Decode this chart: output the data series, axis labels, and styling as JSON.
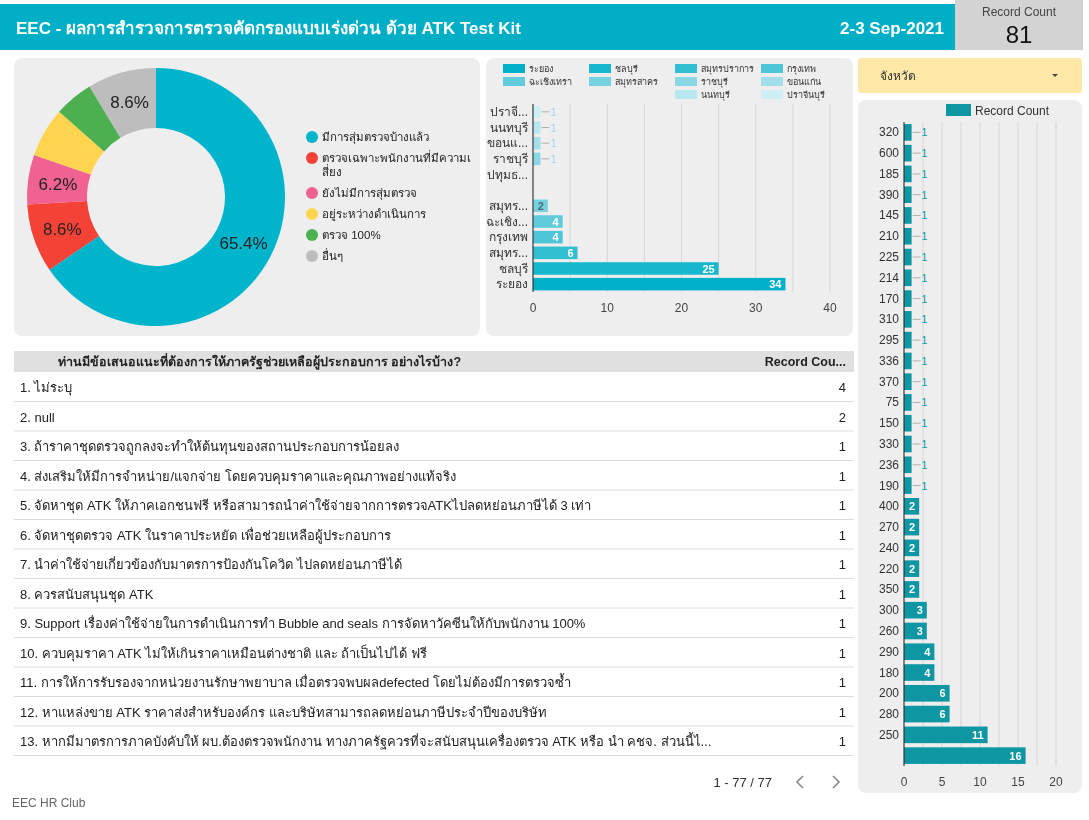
{
  "chart_data": [
    {
      "type": "other",
      "title": "EEC - ผลการสำรวจการตรวจคัดกรองแบบเร่งด่วน ด้วย ATK Test Kit",
      "subtitle": "2-3 Sep-2021"
    },
    {
      "type": "other",
      "title": "Record Count",
      "values": [
        81
      ],
      "data_labels": true
    },
    {
      "type": "donut",
      "categories": [
        "มีการสุ่มตรวจบ้างแล้ว",
        "ตรวจเฉพาะพนักงานที่มีความเสี่ยง",
        "ยังไม่มีการสุ่มตรวจ",
        "อยู่ระหว่างดำเนินการ",
        "ตรวจ 100%",
        "อื่นๆ"
      ],
      "values": [
        65.4,
        8.6,
        6.2,
        6.2,
        4.9,
        8.6
      ],
      "colors": [
        "#00b4cc",
        "#f44336",
        "#f06292",
        "#ffd54f",
        "#4caf50",
        "#bdbdbd"
      ],
      "value_labels": [
        "65.4%",
        "8.6%",
        "6.2%",
        null,
        null,
        "8.6%"
      ],
      "legend": "right"
    },
    {
      "type": "bar",
      "orientation": "horizontal",
      "stacked": true,
      "categories": [
        "ปราจี...",
        "นนทบุรี",
        "ขอนแ...",
        "ราชบุรี",
        "ปทุมธ...",
        null,
        "สมุทร...",
        "ฉะเชิง...",
        "กรุงเทพ",
        "สมุทร...",
        "ชลบุรี",
        "ระยอง"
      ],
      "series": [
        {
          "name": "ระยอง",
          "color": "#00b0c8",
          "values": [
            null,
            null,
            null,
            null,
            null,
            null,
            null,
            null,
            null,
            null,
            null,
            34
          ]
        },
        {
          "name": "ชลบุรี",
          "color": "#17b8cd",
          "values": [
            null,
            null,
            null,
            null,
            null,
            null,
            null,
            null,
            null,
            null,
            25,
            null
          ]
        },
        {
          "name": "สมุทรปราการ",
          "color": "#33bfd2",
          "values": [
            null,
            null,
            null,
            null,
            null,
            null,
            null,
            null,
            null,
            6,
            null,
            null
          ]
        },
        {
          "name": "กรุงเทพ",
          "color": "#4cc6d8",
          "values": [
            null,
            null,
            null,
            null,
            null,
            null,
            null,
            null,
            4,
            null,
            null,
            null
          ]
        },
        {
          "name": "ฉะเชิงเทรา",
          "color": "#60cbdb",
          "values": [
            null,
            null,
            null,
            null,
            null,
            null,
            null,
            4,
            null,
            null,
            null,
            null
          ]
        },
        {
          "name": "สมุทรสาคร",
          "color": "#76d2e0",
          "values": [
            null,
            null,
            null,
            null,
            null,
            null,
            2,
            null,
            null,
            null,
            null,
            null
          ]
        },
        {
          "name": "ราชบุรี",
          "color": "#8bd8e5",
          "values": [
            null,
            null,
            null,
            1,
            null,
            null,
            null,
            null,
            null,
            null,
            null,
            null
          ]
        },
        {
          "name": "ขอนแก่น",
          "color": "#a2dfea",
          "values": [
            null,
            null,
            1,
            null,
            null,
            null,
            null,
            null,
            null,
            null,
            null,
            null
          ]
        },
        {
          "name": "นนทบุรี",
          "color": "#b7e7ef",
          "values": [
            null,
            1,
            null,
            null,
            null,
            null,
            null,
            null,
            null,
            null,
            null,
            null
          ]
        },
        {
          "name": "ปราจีนบุรี",
          "color": "#cdeef3",
          "values": [
            1,
            null,
            null,
            null,
            null,
            null,
            null,
            null,
            null,
            null,
            null,
            null
          ]
        }
      ],
      "xlim": [
        0,
        40
      ],
      "xticks": [
        0,
        {
          "value": 5,
          "label": null
        },
        10,
        {
          "value": 15,
          "label": null
        },
        20,
        {
          "value": 25,
          "label": null
        },
        30,
        {
          "value": 35,
          "label": null
        },
        40
      ],
      "grid": "x",
      "legend": "top",
      "data_labels": true
    },
    {
      "type": "other",
      "title": "จังหวัด"
    },
    {
      "type": "bar",
      "orientation": "horizontal",
      "categories": [
        "320",
        "600",
        "185",
        "390",
        "145",
        "210",
        "225",
        "214",
        "170",
        "310",
        "295",
        "336",
        "370",
        "75",
        "150",
        "330",
        "236",
        "190",
        "400",
        "270",
        "240",
        "220",
        "350",
        "300",
        "260",
        "290",
        "180",
        "200",
        "280",
        "250",
        null
      ],
      "series": [
        {
          "name": "Record Count",
          "color": "#0e96a3",
          "values": [
            1,
            1,
            1,
            1,
            1,
            1,
            1,
            1,
            1,
            1,
            1,
            1,
            1,
            1,
            1,
            1,
            1,
            1,
            2,
            2,
            2,
            2,
            2,
            3,
            3,
            4,
            4,
            6,
            6,
            11,
            16
          ]
        }
      ],
      "xlim": [
        0,
        20
      ],
      "xticks": [
        0,
        {
          "value": 2.5,
          "label": null
        },
        5,
        {
          "value": 7.5,
          "label": null
        },
        10,
        {
          "value": 12.5,
          "label": null
        },
        15,
        {
          "value": 17.5,
          "label": null
        },
        20
      ],
      "grid": "x",
      "legend": "top right",
      "data_labels": true
    },
    {
      "type": "other",
      "xlabel": "ท่านมีข้อเสนอแนะที่ต้องการให้ภาครัฐช่วยเหลือผู้ประกอบการ อย่างไรบ้าง?",
      "ylabel": "Record Cou...",
      "categories": [
        "1. ไม่ระบุ",
        "2. null",
        "3. ถ้าราคาชุดตรวจถูกลงจะทำให้ต้นทุนของสถานประกอบการน้อยลง",
        "4. ส่งเสริมให้มีการจำหน่าย/แจกจ่าย โดยควบคุมราคาและคุณภาพอย่างแท้จริง",
        "5. จัดหาชุด ATK ให้ภาคเอกชนฟรี หรือสามารถนำค่าใช้จ่ายจากการตรวจATKไปลดหย่อนภาษีได้ 3 เท่า",
        "6. จัดหาชุดตรวจ ATK ในราคาประหยัด เพื่อช่วยเหลือผู้ประกอบการ",
        "7. นำค่าใช้จ่ายเกี่ยวข้องกับมาตรการป้องกันโควิด ไปลดหย่อนภาษีได้",
        "8. ควรสนับสนุนชุด ATK",
        "9. Support เรื่องค่าใช้จ่ายในการดำเนินการทำ Bubble and seals การจัดหาวัคซีนให้กับพนักงาน 100%",
        "10. ควบคุมราคา ATK ไม่ให้เกินราคาเหมือนต่างชาติ และ ถ้าเป็นไปได้ ฟรี",
        "11. การให้การรับรองจากหน่วยงานรักษาพยาบาล เมื่อตรวจพบผลdefected โดยไม่ต้องมีการตรวจซ้ำ",
        "12. หาแหล่งขาย ATK ราคาส่งสำหรับองค์กร และบริษัทสามารถลดหย่อนภาษีประจำปีของบริษัท",
        "13. หากมีมาตรการภาคบังคับให้ ผบ.ต้องตรวจพนักงาน ทางภาครัฐควรที่จะสนับสนุนเครื่องตรวจ ATK หรือ นำ คชจ. ส่วนนี้ไ..."
      ],
      "values": [
        4,
        2,
        1,
        1,
        1,
        1,
        1,
        1,
        1,
        1,
        1,
        1,
        1
      ],
      "data_labels": true,
      "annotations": [
        "1 - 77 / 77",
        "EEC HR Club"
      ]
    }
  ]
}
